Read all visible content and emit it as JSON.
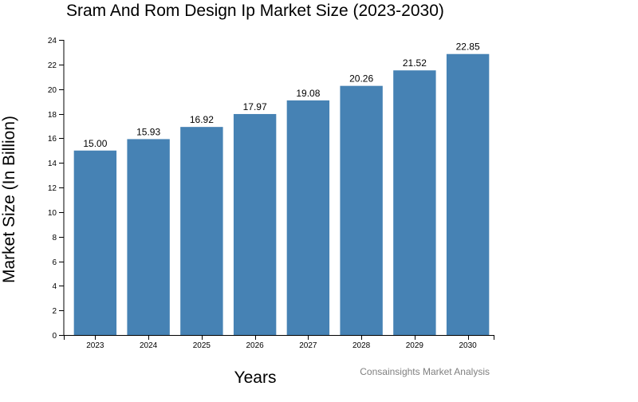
{
  "chart_data": {
    "type": "bar",
    "title": "Sram And Rom Design Ip Market Size (2023-2030)",
    "xlabel": "Years",
    "ylabel": "Market Size (In Billion)",
    "categories": [
      "2023",
      "2024",
      "2025",
      "2026",
      "2027",
      "2028",
      "2029",
      "2030"
    ],
    "values": [
      15.0,
      15.93,
      16.92,
      17.97,
      19.08,
      20.26,
      21.52,
      22.85
    ],
    "value_labels": [
      "15.00",
      "15.93",
      "16.92",
      "17.97",
      "19.08",
      "20.26",
      "21.52",
      "22.85"
    ],
    "ylim": [
      0,
      24
    ],
    "yticks": [
      0,
      2,
      4,
      6,
      8,
      10,
      12,
      14,
      16,
      18,
      20,
      22,
      24
    ],
    "grid": false,
    "legend": "none",
    "bar_color": "#4682b4",
    "source": "Consainsights Market Analysis"
  }
}
